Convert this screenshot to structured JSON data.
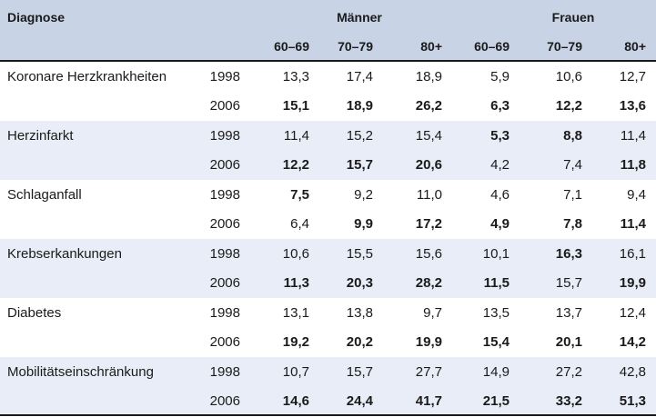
{
  "header": {
    "diagnose": "Diagnose",
    "maenner": "Männer",
    "frauen": "Frauen",
    "ages": [
      "60–69",
      "70–79",
      "80+",
      "60–69",
      "70–79",
      "80+"
    ]
  },
  "rows": [
    {
      "diagnosis": "Koronare Herzkrankheiten",
      "y1": {
        "year": "1998",
        "values": [
          "13,3",
          "17,4",
          "18,9",
          "5,9",
          "10,6",
          "12,7"
        ],
        "bold": [
          false,
          false,
          false,
          false,
          false,
          false
        ]
      },
      "y2": {
        "year": "2006",
        "values": [
          "15,1",
          "18,9",
          "26,2",
          "6,3",
          "12,2",
          "13,6"
        ],
        "bold": [
          true,
          true,
          true,
          true,
          true,
          true
        ]
      }
    },
    {
      "diagnosis": "Herzinfarkt",
      "y1": {
        "year": "1998",
        "values": [
          "11,4",
          "15,2",
          "15,4",
          "5,3",
          "8,8",
          "11,4"
        ],
        "bold": [
          false,
          false,
          false,
          true,
          true,
          false
        ]
      },
      "y2": {
        "year": "2006",
        "values": [
          "12,2",
          "15,7",
          "20,6",
          "4,2",
          "7,4",
          "11,8"
        ],
        "bold": [
          true,
          true,
          true,
          false,
          false,
          true
        ]
      }
    },
    {
      "diagnosis": "Schlaganfall",
      "y1": {
        "year": "1998",
        "values": [
          "7,5",
          "9,2",
          "11,0",
          "4,6",
          "7,1",
          "9,4"
        ],
        "bold": [
          true,
          false,
          false,
          false,
          false,
          false
        ]
      },
      "y2": {
        "year": "2006",
        "values": [
          "6,4",
          "9,9",
          "17,2",
          "4,9",
          "7,8",
          "11,4"
        ],
        "bold": [
          false,
          true,
          true,
          true,
          true,
          true
        ]
      }
    },
    {
      "diagnosis": "Krebserkankungen",
      "y1": {
        "year": "1998",
        "values": [
          "10,6",
          "15,5",
          "15,6",
          "10,1",
          "16,3",
          "16,1"
        ],
        "bold": [
          false,
          false,
          false,
          false,
          true,
          false
        ]
      },
      "y2": {
        "year": "2006",
        "values": [
          "11,3",
          "20,3",
          "28,2",
          "11,5",
          "15,7",
          "19,9"
        ],
        "bold": [
          true,
          true,
          true,
          true,
          false,
          true
        ]
      }
    },
    {
      "diagnosis": "Diabetes",
      "y1": {
        "year": "1998",
        "values": [
          "13,1",
          "13,8",
          "9,7",
          "13,5",
          "13,7",
          "12,4"
        ],
        "bold": [
          false,
          false,
          false,
          false,
          false,
          false
        ]
      },
      "y2": {
        "year": "2006",
        "values": [
          "19,2",
          "20,2",
          "19,9",
          "15,4",
          "20,1",
          "14,2"
        ],
        "bold": [
          true,
          true,
          true,
          true,
          true,
          true
        ]
      }
    },
    {
      "diagnosis": "Mobilitätseinschränkung",
      "y1": {
        "year": "1998",
        "values": [
          "10,7",
          "15,7",
          "27,7",
          "14,9",
          "27,2",
          "42,8"
        ],
        "bold": [
          false,
          false,
          false,
          false,
          false,
          false
        ]
      },
      "y2": {
        "year": "2006",
        "values": [
          "14,6",
          "24,4",
          "41,7",
          "21,5",
          "33,2",
          "51,3"
        ],
        "bold": [
          true,
          true,
          true,
          true,
          true,
          true
        ]
      }
    }
  ]
}
